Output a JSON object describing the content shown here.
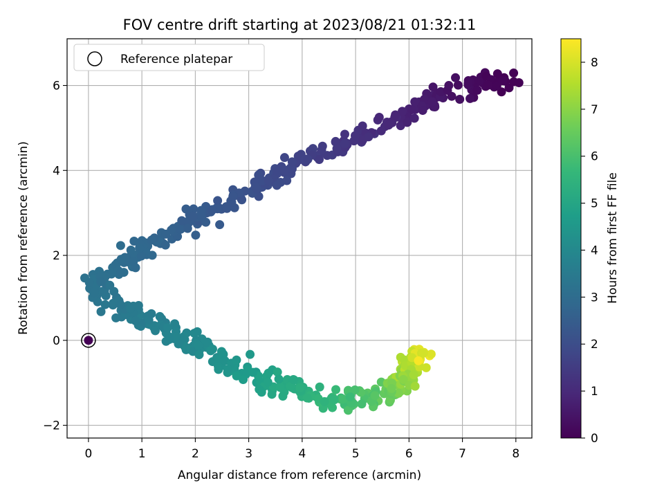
{
  "chart_data": {
    "type": "scatter",
    "title": "FOV centre drift starting at 2023/08/21 01:32:11",
    "xlabel": "Angular distance from reference (arcmin)",
    "ylabel": "Rotation from reference (arcmin)",
    "xlim": [
      -0.4,
      8.3
    ],
    "ylim": [
      -2.3,
      7.1
    ],
    "xticks": [
      0,
      1,
      2,
      3,
      4,
      5,
      6,
      7,
      8
    ],
    "yticks": [
      -2,
      0,
      2,
      4,
      6
    ],
    "grid": true,
    "legend": {
      "position": "top-left",
      "entries": [
        "Reference platepar"
      ]
    },
    "colorbar": {
      "label": "Hours from first FF file",
      "range": [
        0,
        8.5
      ],
      "ticks": [
        0,
        1,
        2,
        3,
        4,
        5,
        6,
        7,
        8
      ],
      "colormap": "viridis"
    },
    "reference_point": {
      "x": 0,
      "y": 0,
      "hours": 0
    },
    "path": [
      {
        "x": 7.9,
        "y": 6.15,
        "hours": 0.0
      },
      {
        "x": 7.0,
        "y": 5.95,
        "hours": 0.3
      },
      {
        "x": 6.2,
        "y": 5.55,
        "hours": 0.7
      },
      {
        "x": 5.2,
        "y": 4.9,
        "hours": 1.15
      },
      {
        "x": 4.0,
        "y": 4.2,
        "hours": 1.7
      },
      {
        "x": 3.0,
        "y": 3.5,
        "hours": 2.1
      },
      {
        "x": 2.3,
        "y": 3.1,
        "hours": 2.35
      },
      {
        "x": 1.5,
        "y": 2.5,
        "hours": 2.65
      },
      {
        "x": 1.0,
        "y": 2.15,
        "hours": 2.85
      },
      {
        "x": 0.5,
        "y": 1.65,
        "hours": 3.05
      },
      {
        "x": 0.1,
        "y": 1.3,
        "hours": 3.2
      },
      {
        "x": 0.4,
        "y": 0.9,
        "hours": 3.35
      },
      {
        "x": 0.9,
        "y": 0.6,
        "hours": 3.5
      },
      {
        "x": 1.3,
        "y": 0.35,
        "hours": 3.7
      },
      {
        "x": 2.0,
        "y": -0.1,
        "hours": 4.0
      },
      {
        "x": 2.8,
        "y": -0.65,
        "hours": 4.5
      },
      {
        "x": 3.5,
        "y": -1.0,
        "hours": 5.0
      },
      {
        "x": 4.3,
        "y": -1.35,
        "hours": 5.5
      },
      {
        "x": 5.0,
        "y": -1.4,
        "hours": 6.0
      },
      {
        "x": 5.6,
        "y": -1.3,
        "hours": 6.5
      },
      {
        "x": 5.9,
        "y": -1.0,
        "hours": 7.0
      },
      {
        "x": 6.0,
        "y": -0.55,
        "hours": 7.5
      },
      {
        "x": 6.2,
        "y": -0.3,
        "hours": 8.1
      },
      {
        "x": 6.15,
        "y": -0.5,
        "hours": 8.5
      }
    ],
    "point_count": 620
  }
}
